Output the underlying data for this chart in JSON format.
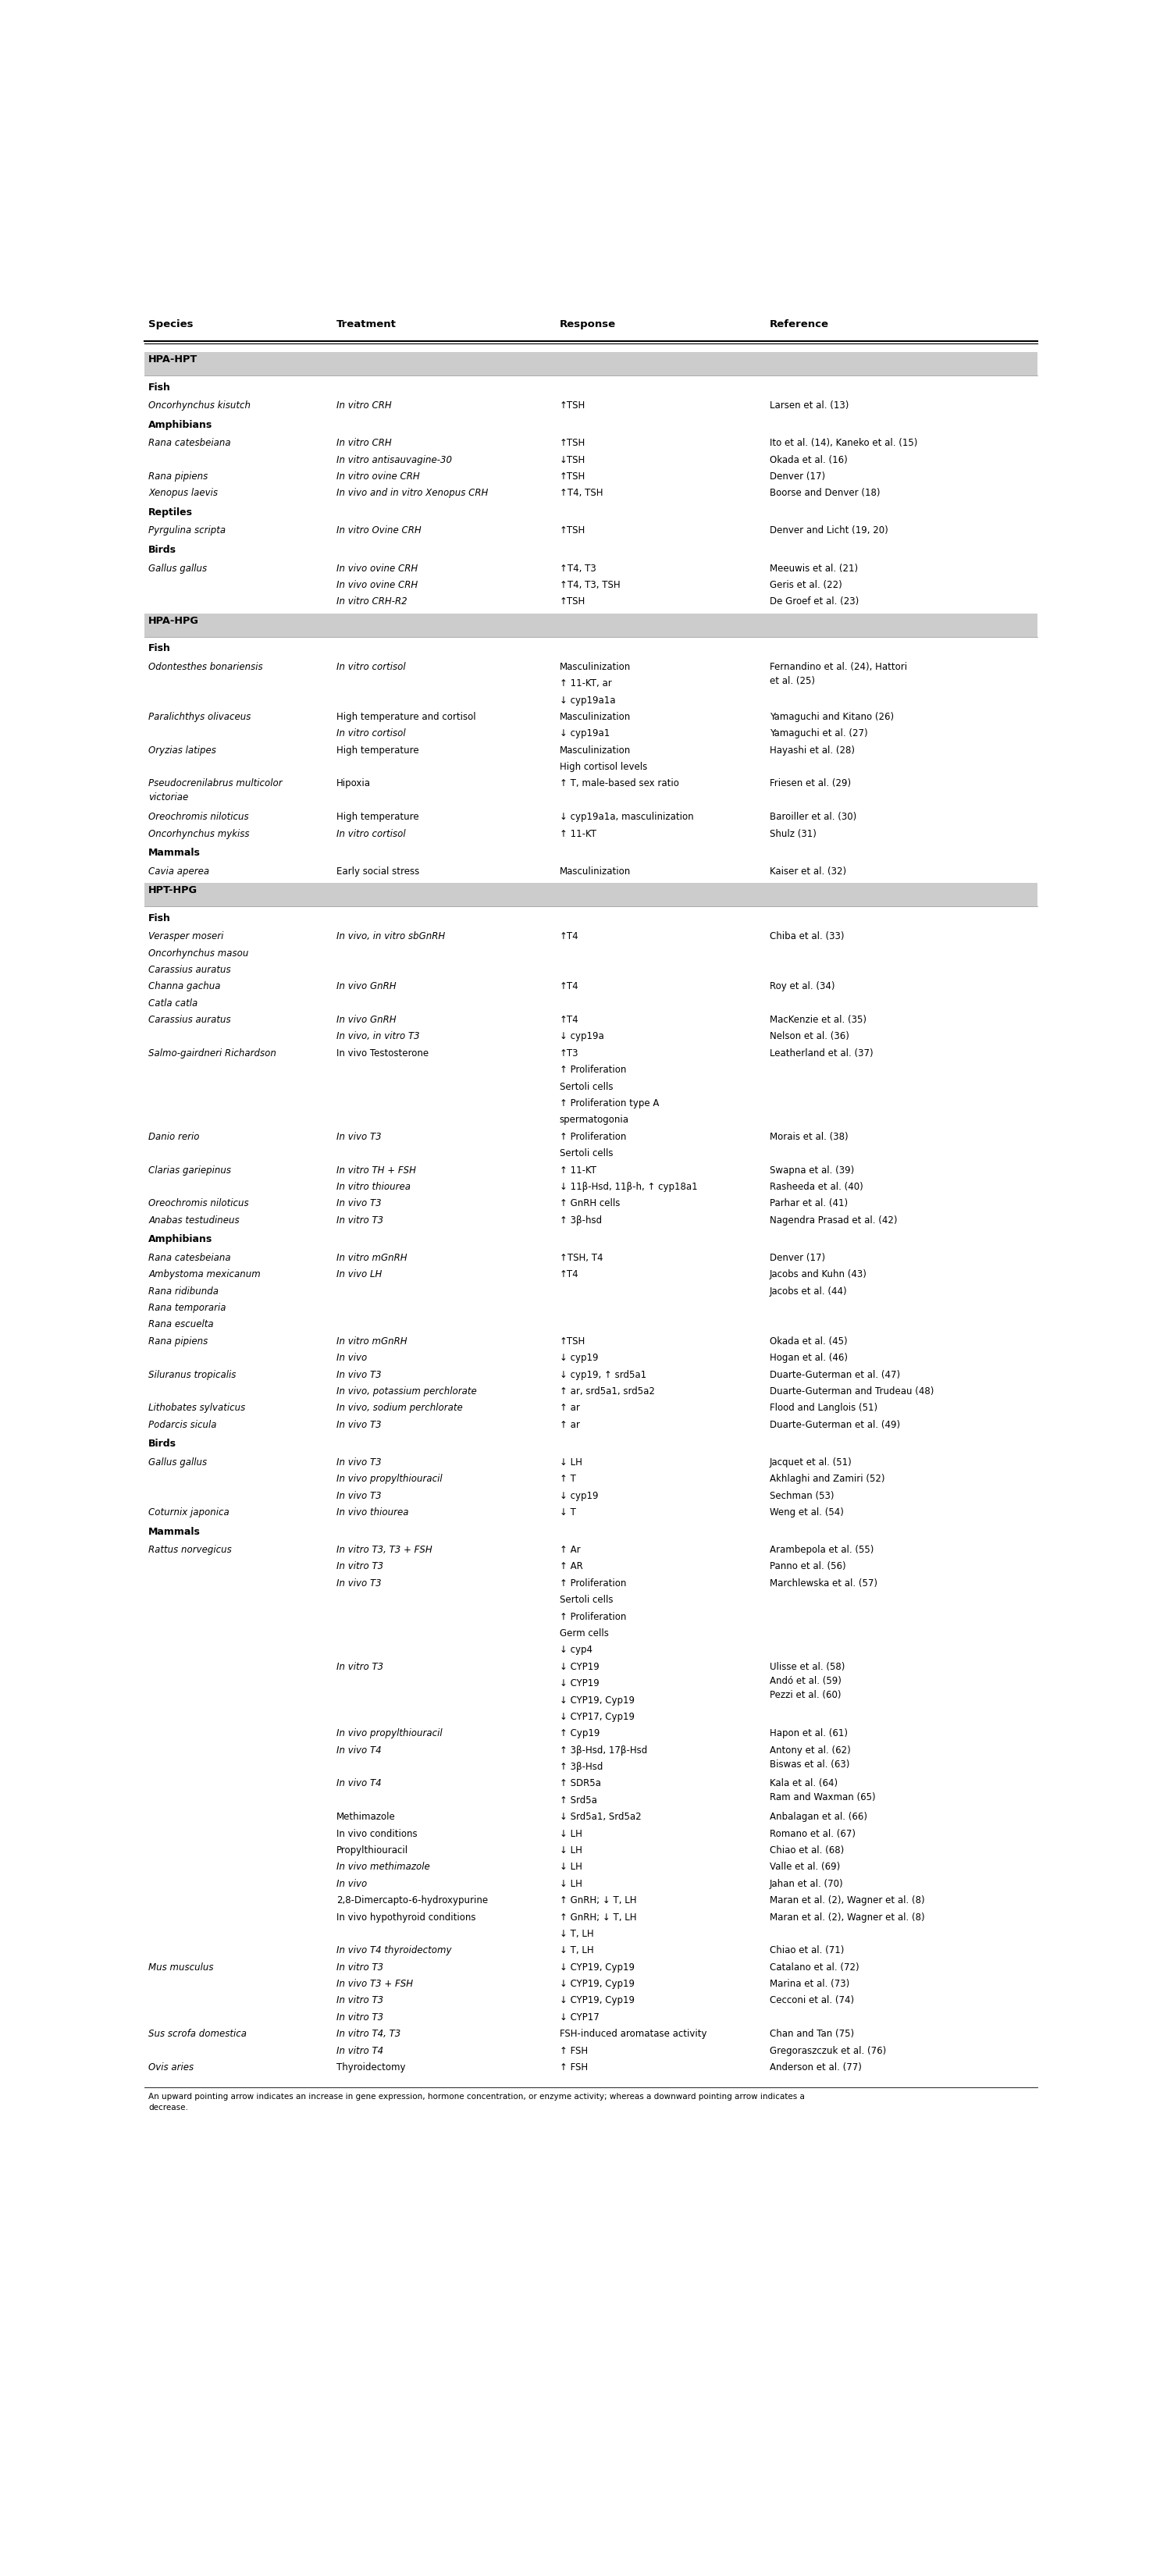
{
  "col_headers": [
    "Species",
    "Treatment",
    "Response",
    "Reference"
  ],
  "section_bg": "#cccccc",
  "rows": [
    {
      "type": "section",
      "label": "HPA-HPT"
    },
    {
      "type": "subheader",
      "label": "Fish"
    },
    {
      "type": "data",
      "species": "Oncorhynchus kisutch",
      "italic_species": true,
      "treatment": "In vitro CRH",
      "italic_treatment": true,
      "response": "↑TSH",
      "reference": "Larsen et al. (13)"
    },
    {
      "type": "subheader",
      "label": "Amphibians"
    },
    {
      "type": "data",
      "species": "Rana catesbeiana",
      "italic_species": true,
      "treatment": "In vitro CRH",
      "italic_treatment": true,
      "response": "↑TSH",
      "reference": "Ito et al. (14), Kaneko et al. (15)"
    },
    {
      "type": "data",
      "species": "",
      "italic_species": false,
      "treatment": "In vitro antisauvagine-30",
      "italic_treatment": true,
      "response": "↓TSH",
      "reference": "Okada et al. (16)"
    },
    {
      "type": "data",
      "species": "Rana pipiens",
      "italic_species": true,
      "treatment": "In vitro ovine CRH",
      "italic_treatment": true,
      "response": "↑TSH",
      "reference": "Denver (17)"
    },
    {
      "type": "data",
      "species": "Xenopus laevis",
      "italic_species": true,
      "treatment": "In vivo and in vitro Xenopus CRH",
      "italic_treatment": true,
      "response": "↑T4, TSH",
      "reference": "Boorse and Denver (18)"
    },
    {
      "type": "subheader",
      "label": "Reptiles"
    },
    {
      "type": "data",
      "species": "Pyrgulina scripta",
      "italic_species": true,
      "treatment": "In vitro Ovine CRH",
      "italic_treatment": true,
      "response": "↑TSH",
      "reference": "Denver and Licht (19, 20)"
    },
    {
      "type": "subheader",
      "label": "Birds"
    },
    {
      "type": "data",
      "species": "Gallus gallus",
      "italic_species": true,
      "treatment": "In vivo ovine CRH",
      "italic_treatment": true,
      "response": "↑T4, T3",
      "reference": "Meeuwis et al. (21)"
    },
    {
      "type": "data",
      "species": "",
      "italic_species": false,
      "treatment": "In vivo ovine CRH",
      "italic_treatment": true,
      "response": "↑T4, T3, TSH",
      "reference": "Geris et al. (22)"
    },
    {
      "type": "data",
      "species": "",
      "italic_species": false,
      "treatment": "In vitro CRH-R2",
      "italic_treatment": true,
      "response": "↑TSH",
      "reference": "De Groef et al. (23)"
    },
    {
      "type": "section",
      "label": "HPA-HPG"
    },
    {
      "type": "subheader",
      "label": "Fish"
    },
    {
      "type": "data_multi",
      "species": "Odontesthes bonariensis",
      "italic_species": true,
      "treatment": "In vitro cortisol",
      "italic_treatment": true,
      "response": [
        "Masculinization",
        "↑ 11-KT, ar",
        "↓ cyp19a1a"
      ],
      "reference": "Fernandino et al. (24), Hattori\net al. (25)"
    },
    {
      "type": "data",
      "species": "Paralichthys olivaceus",
      "italic_species": true,
      "treatment": "High temperature and cortisol",
      "italic_treatment": false,
      "response": "Masculinization",
      "reference": "Yamaguchi and Kitano (26)"
    },
    {
      "type": "data",
      "species": "",
      "italic_species": false,
      "treatment": "In vitro cortisol",
      "italic_treatment": true,
      "response": "↓ cyp19a1",
      "reference": "Yamaguchi et al. (27)"
    },
    {
      "type": "data_multi",
      "species": "Oryzias latipes",
      "italic_species": true,
      "treatment": "High temperature",
      "italic_treatment": false,
      "response": [
        "Masculinization",
        "High cortisol levels"
      ],
      "reference": "Hayashi et al. (28)"
    },
    {
      "type": "data_multi",
      "species": "Pseudocrenilabrus multicolor\nvictoriae",
      "italic_species": true,
      "treatment": "Hipoxia",
      "italic_treatment": false,
      "response": [
        "↑ T, male-based sex ratio"
      ],
      "reference": "Friesen et al. (29)"
    },
    {
      "type": "data",
      "species": "Oreochromis niloticus",
      "italic_species": true,
      "treatment": "High temperature",
      "italic_treatment": false,
      "response": "↓ cyp19a1a, masculinization",
      "reference": "Baroiller et al. (30)"
    },
    {
      "type": "data",
      "species": "Oncorhynchus mykiss",
      "italic_species": true,
      "treatment": "In vitro cortisol",
      "italic_treatment": true,
      "response": "↑ 11-KT",
      "reference": "Shulz (31)"
    },
    {
      "type": "subheader",
      "label": "Mammals"
    },
    {
      "type": "data",
      "species": "Cavia aperea",
      "italic_species": true,
      "treatment": "Early social stress",
      "italic_treatment": false,
      "response": "Masculinization",
      "reference": "Kaiser et al. (32)"
    },
    {
      "type": "section",
      "label": "HPT-HPG"
    },
    {
      "type": "subheader",
      "label": "Fish"
    },
    {
      "type": "data",
      "species": "Verasper moseri",
      "italic_species": true,
      "treatment": "In vivo, in vitro sbGnRH",
      "italic_treatment": true,
      "response": "↑T4",
      "reference": "Chiba et al. (33)"
    },
    {
      "type": "data",
      "species": "Oncorhynchus masou",
      "italic_species": true,
      "treatment": "",
      "italic_treatment": false,
      "response": "",
      "reference": ""
    },
    {
      "type": "data",
      "species": "Carassius auratus",
      "italic_species": true,
      "treatment": "",
      "italic_treatment": false,
      "response": "",
      "reference": ""
    },
    {
      "type": "data",
      "species": "Channa gachua",
      "italic_species": true,
      "treatment": "In vivo GnRH",
      "italic_treatment": true,
      "response": "↑T4",
      "reference": "Roy et al. (34)"
    },
    {
      "type": "data",
      "species": "Catla catla",
      "italic_species": true,
      "treatment": "",
      "italic_treatment": false,
      "response": "",
      "reference": ""
    },
    {
      "type": "data",
      "species": "Carassius auratus",
      "italic_species": true,
      "treatment": "In vivo GnRH",
      "italic_treatment": true,
      "response": "↑T4",
      "reference": "MacKenzie et al. (35)"
    },
    {
      "type": "data",
      "species": "",
      "italic_species": false,
      "treatment": "In vivo, in vitro T3",
      "italic_treatment": true,
      "response": "↓ cyp19a",
      "reference": "Nelson et al. (36)"
    },
    {
      "type": "data_multi",
      "species": "Salmo-gairdneri Richardson",
      "italic_species": true,
      "treatment": "In vivo Testosterone",
      "italic_treatment": false,
      "response": [
        "↑T3",
        "↑ Proliferation",
        "Sertoli cells",
        "↑ Proliferation type A",
        "spermatogonia"
      ],
      "reference": "Leatherland et al. (37)"
    },
    {
      "type": "data_multi",
      "species": "Danio rerio",
      "italic_species": true,
      "treatment": "In vivo T3",
      "italic_treatment": true,
      "response": [
        "↑ Proliferation",
        "Sertoli cells"
      ],
      "reference": "Morais et al. (38)"
    },
    {
      "type": "data_multi",
      "species": "Clarias gariepinus",
      "italic_species": true,
      "treatment": "In vitro TH + FSH",
      "italic_treatment": true,
      "response": [
        "↑ 11-KT"
      ],
      "reference": "Swapna et al. (39)"
    },
    {
      "type": "data",
      "species": "",
      "italic_species": false,
      "treatment": "In vitro thiourea",
      "italic_treatment": true,
      "response": "↓ 11β-Hsd, 11β-h, ↑ cyp18a1",
      "reference": "Rasheeda et al. (40)"
    },
    {
      "type": "data",
      "species": "Oreochromis niloticus",
      "italic_species": true,
      "treatment": "In vivo T3",
      "italic_treatment": true,
      "response": "↑ GnRH cells",
      "reference": "Parhar et al. (41)"
    },
    {
      "type": "data",
      "species": "Anabas testudineus",
      "italic_species": true,
      "treatment": "In vitro T3",
      "italic_treatment": true,
      "response": "↑ 3β-hsd",
      "reference": "Nagendra Prasad et al. (42)"
    },
    {
      "type": "subheader",
      "label": "Amphibians"
    },
    {
      "type": "data",
      "species": "Rana catesbeiana",
      "italic_species": true,
      "treatment": "In vitro mGnRH",
      "italic_treatment": true,
      "response": "↑TSH, T4",
      "reference": "Denver (17)"
    },
    {
      "type": "data",
      "species": "Ambystoma mexicanum",
      "italic_species": true,
      "treatment": "In vivo LH",
      "italic_treatment": true,
      "response": "↑T4",
      "reference": "Jacobs and Kuhn (43)"
    },
    {
      "type": "data",
      "species": "Rana ridibunda",
      "italic_species": true,
      "treatment": "",
      "italic_treatment": false,
      "response": "",
      "reference": "Jacobs et al. (44)"
    },
    {
      "type": "data",
      "species": "Rana temporaria",
      "italic_species": true,
      "treatment": "",
      "italic_treatment": false,
      "response": "",
      "reference": ""
    },
    {
      "type": "data",
      "species": "Rana escuelta",
      "italic_species": true,
      "treatment": "",
      "italic_treatment": false,
      "response": "",
      "reference": ""
    },
    {
      "type": "data",
      "species": "Rana pipiens",
      "italic_species": true,
      "treatment": "In vitro mGnRH",
      "italic_treatment": true,
      "response": "↑TSH",
      "reference": "Okada et al. (45)"
    },
    {
      "type": "data",
      "species": "",
      "italic_species": false,
      "treatment": "In vivo",
      "italic_treatment": true,
      "response": "↓ cyp19",
      "reference": "Hogan et al. (46)"
    },
    {
      "type": "data",
      "species": "Siluranus tropicalis",
      "italic_species": true,
      "treatment": "In vivo T3",
      "italic_treatment": true,
      "response": "↓ cyp19, ↑ srd5a1",
      "reference": "Duarte-Guterman et al. (47)"
    },
    {
      "type": "data",
      "species": "",
      "italic_species": false,
      "treatment": "In vivo, potassium perchlorate",
      "italic_treatment": true,
      "response": "↑ ar, srd5a1, srd5a2",
      "reference": "Duarte-Guterman and Trudeau (48)"
    },
    {
      "type": "data",
      "species": "Lithobates sylvaticus",
      "italic_species": true,
      "treatment": "In vivo, sodium perchlorate",
      "italic_treatment": true,
      "response": "↑ ar",
      "reference": "Flood and Langlois (51)"
    },
    {
      "type": "data",
      "species": "Podarcis sicula",
      "italic_species": true,
      "treatment": "In vivo T3",
      "italic_treatment": true,
      "response": "↑ ar",
      "reference": "Duarte-Guterman et al. (49)"
    },
    {
      "type": "subheader",
      "label": "Birds"
    },
    {
      "type": "data",
      "species": "Gallus gallus",
      "italic_species": true,
      "treatment": "In vivo T3",
      "italic_treatment": true,
      "response": "↓ LH",
      "reference": "Jacquet et al. (51)"
    },
    {
      "type": "data",
      "species": "",
      "italic_species": false,
      "treatment": "In vivo propylthiouracil",
      "italic_treatment": true,
      "response": "↑ T",
      "reference": "Akhlaghi and Zamiri (52)"
    },
    {
      "type": "data",
      "species": "",
      "italic_species": false,
      "treatment": "In vivo T3",
      "italic_treatment": true,
      "response": "↓ cyp19",
      "reference": "Sechman (53)"
    },
    {
      "type": "data",
      "species": "Coturnix japonica",
      "italic_species": true,
      "treatment": "In vivo thiourea",
      "italic_treatment": true,
      "response": "↓ T",
      "reference": "Weng et al. (54)"
    },
    {
      "type": "subheader",
      "label": "Mammals"
    },
    {
      "type": "data",
      "species": "Rattus norvegicus",
      "italic_species": true,
      "treatment": "In vitro T3, T3 + FSH",
      "italic_treatment": true,
      "response": "↑ Ar",
      "reference": "Arambepola et al. (55)"
    },
    {
      "type": "data",
      "species": "",
      "italic_species": false,
      "treatment": "In vitro T3",
      "italic_treatment": true,
      "response": "↑ AR",
      "reference": "Panno et al. (56)"
    },
    {
      "type": "data_multi",
      "species": "",
      "italic_species": false,
      "treatment": "In vivo T3",
      "italic_treatment": true,
      "response": [
        "↑ Proliferation",
        "Sertoli cells",
        "↑ Proliferation",
        "Germ cells",
        "↓ cyp4"
      ],
      "reference": "Marchlewska et al. (57)"
    },
    {
      "type": "data_multi",
      "species": "",
      "italic_species": false,
      "treatment": "In vitro T3",
      "italic_treatment": true,
      "response": [
        "↓ CYP19",
        "↓ CYP19",
        "↓ CYP19, Cyp19",
        "↓ CYP17, Cyp19"
      ],
      "reference": "Ulisse et al. (58)\nAndó et al. (59)\nPezzi et al. (60)"
    },
    {
      "type": "data",
      "species": "",
      "italic_species": false,
      "treatment": "In vivo propylthiouracil",
      "italic_treatment": true,
      "response": "↑ Cyp19",
      "reference": "Hapon et al. (61)"
    },
    {
      "type": "data_multi",
      "species": "",
      "italic_species": false,
      "treatment": "In vivo T4",
      "italic_treatment": true,
      "response": [
        "↑ 3β-Hsd, 17β-Hsd",
        "↑ 3β-Hsd"
      ],
      "reference": "Antony et al. (62)\nBiswas et al. (63)"
    },
    {
      "type": "data_multi",
      "species": "",
      "italic_species": false,
      "treatment": "In vivo T4",
      "italic_treatment": true,
      "response": [
        "↑ SDR5a",
        "↑ Srd5a"
      ],
      "reference": "Kala et al. (64)\nRam and Waxman (65)"
    },
    {
      "type": "data",
      "species": "",
      "italic_species": false,
      "treatment": "Methimazole",
      "italic_treatment": false,
      "response": "↓ Srd5a1, Srd5a2",
      "reference": "Anbalagan et al. (66)"
    },
    {
      "type": "data",
      "species": "",
      "italic_species": false,
      "treatment": "In vivo conditions",
      "italic_treatment": false,
      "response": "↓ LH",
      "reference": "Romano et al. (67)"
    },
    {
      "type": "data",
      "species": "",
      "italic_species": false,
      "treatment": "Propylthiouracil",
      "italic_treatment": false,
      "response": "↓ LH",
      "reference": "Chiao et al. (68)"
    },
    {
      "type": "data",
      "species": "",
      "italic_species": false,
      "treatment": "In vivo methimazole",
      "italic_treatment": true,
      "response": "↓ LH",
      "reference": "Valle et al. (69)"
    },
    {
      "type": "data",
      "species": "",
      "italic_species": false,
      "treatment": "In vivo",
      "italic_treatment": true,
      "response": "↓ LH",
      "reference": "Jahan et al. (70)"
    },
    {
      "type": "data",
      "species": "",
      "italic_species": false,
      "treatment": "2,8-Dimercapto-6-hydroxypurine",
      "italic_treatment": false,
      "response": "↑ GnRH; ↓ T, LH",
      "reference": "Maran et al. (2), Wagner et al. (8)"
    },
    {
      "type": "data_multi",
      "species": "",
      "italic_species": false,
      "treatment": "In vivo hypothyroid conditions",
      "italic_treatment": false,
      "response": [
        "↑ GnRH; ↓ T, LH",
        "↓ T, LH"
      ],
      "reference": "Maran et al. (2), Wagner et al. (8)"
    },
    {
      "type": "data",
      "species": "",
      "italic_species": false,
      "treatment": "In vivo T4 thyroidectomy",
      "italic_treatment": true,
      "response": "↓ T, LH",
      "reference": "Chiao et al. (71)"
    },
    {
      "type": "data",
      "species": "Mus musculus",
      "italic_species": true,
      "treatment": "In vitro T3",
      "italic_treatment": true,
      "response": "↓ CYP19, Cyp19",
      "reference": "Catalano et al. (72)"
    },
    {
      "type": "data",
      "species": "",
      "italic_species": false,
      "treatment": "In vivo T3 + FSH",
      "italic_treatment": true,
      "response": "↓ CYP19, Cyp19",
      "reference": "Marina et al. (73)"
    },
    {
      "type": "data",
      "species": "",
      "italic_species": false,
      "treatment": "In vitro T3",
      "italic_treatment": true,
      "response": "↓ CYP19, Cyp19",
      "reference": "Cecconi et al. (74)"
    },
    {
      "type": "data",
      "species": "",
      "italic_species": false,
      "treatment": "In vitro T3",
      "italic_treatment": true,
      "response": "↓ CYP17",
      "reference": ""
    },
    {
      "type": "data",
      "species": "Sus scrofa domestica",
      "italic_species": true,
      "treatment": "In vitro T4, T3",
      "italic_treatment": true,
      "response": "FSH-induced aromatase activity",
      "reference": "Chan and Tan (75)"
    },
    {
      "type": "data",
      "species": "",
      "italic_species": false,
      "treatment": "In vitro T4",
      "italic_treatment": true,
      "response": "↑ FSH",
      "reference": "Gregoraszczuk et al. (76)"
    },
    {
      "type": "data",
      "species": "Ovis aries",
      "italic_species": true,
      "treatment": "Thyroidectomy",
      "italic_treatment": false,
      "response": "↑ FSH",
      "reference": "Anderson et al. (77)"
    }
  ],
  "footnote": "An upward pointing arrow indicates an increase in gene expression, hormone concentration, or enzyme activity; whereas a downward pointing arrow indicates a\ndecrease."
}
